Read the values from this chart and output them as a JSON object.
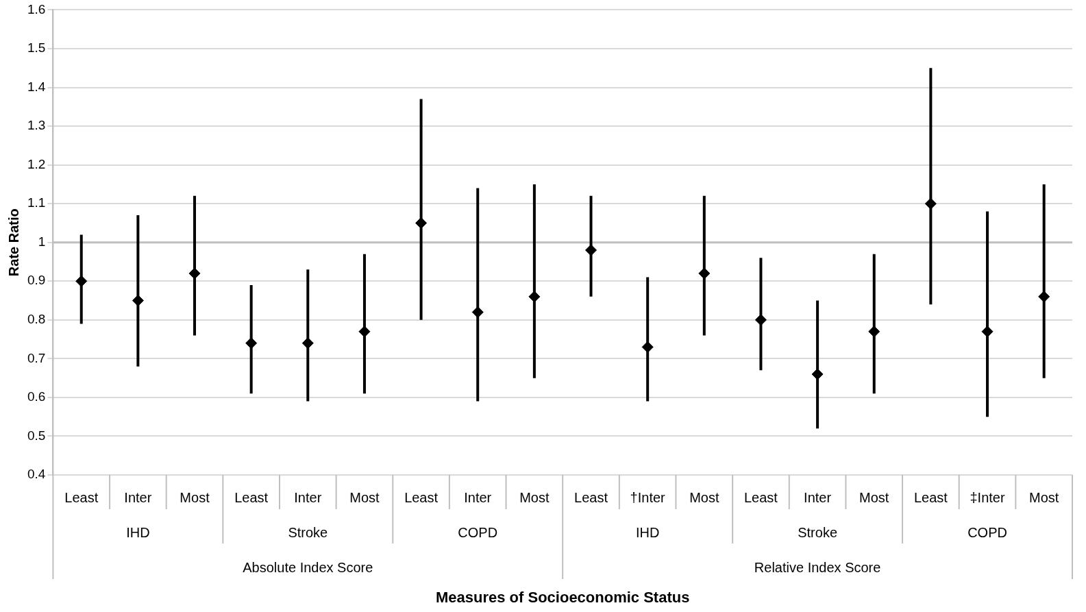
{
  "chart_data": {
    "type": "scatter",
    "ylabel": "Rate Ratio",
    "categories": [
      "Least",
      "Inter",
      "Most",
      "Least",
      "Inter",
      "Most",
      "Least",
      "Inter",
      "Most",
      "Least",
      "†Inter",
      "Most",
      "Least",
      "Inter",
      "Most",
      "Least",
      "‡Inter",
      "Most"
    ],
    "values": [
      0.9,
      0.85,
      0.92,
      0.74,
      0.74,
      0.77,
      1.05,
      0.82,
      0.86,
      0.98,
      0.73,
      0.92,
      0.8,
      0.66,
      0.77,
      1.1,
      0.77,
      0.86
    ],
    "errors": [
      [
        0.79,
        1.02
      ],
      [
        0.68,
        1.07
      ],
      [
        0.76,
        1.12
      ],
      [
        0.61,
        0.89
      ],
      [
        0.59,
        0.93
      ],
      [
        0.61,
        0.97
      ],
      [
        0.8,
        1.37
      ],
      [
        0.59,
        1.14
      ],
      [
        0.65,
        1.15
      ],
      [
        0.86,
        1.12
      ],
      [
        0.59,
        0.91
      ],
      [
        0.76,
        1.12
      ],
      [
        0.67,
        0.96
      ],
      [
        0.52,
        0.85
      ],
      [
        0.61,
        0.97
      ],
      [
        0.84,
        1.45
      ],
      [
        0.55,
        1.08
      ],
      [
        0.65,
        1.15
      ]
    ],
    "color": "#000000",
    "marker": "diamond",
    "annotations": [
      "IHD",
      "Stroke",
      "COPD",
      "IHD",
      "Stroke",
      "COPD",
      "Absolute Index Score",
      "Relative Index Score",
      "Measures of Socioeconomic Status"
    ],
    "ylim": [
      0.4,
      1.6
    ],
    "yticks": [
      0.4,
      0.5,
      0.6,
      0.7,
      0.8,
      0.9,
      1,
      1.1,
      1.2,
      1.3,
      1.4,
      1.5,
      1.6
    ],
    "ref_lines": [
      {
        "axis": "y",
        "value": 1,
        "color": "#bfbfbf"
      }
    ],
    "grid": "y",
    "legend": false
  }
}
